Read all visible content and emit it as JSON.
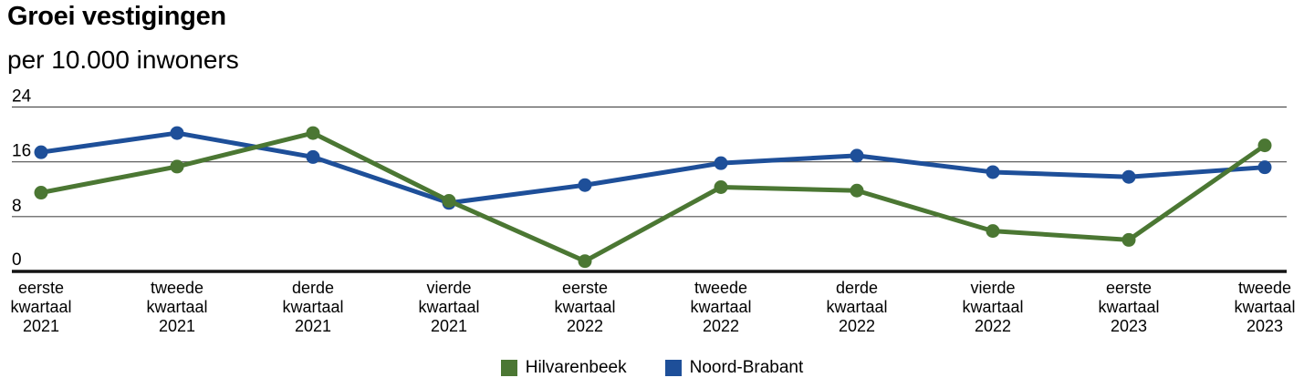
{
  "header": {
    "title": "Groei vestigingen",
    "subtitle": "per 10.000 inwoners"
  },
  "chart_data": {
    "type": "line",
    "title": "Groei vestigingen",
    "subtitle": "per 10.000 inwoners",
    "categories": [
      "eerste kwartaal 2021",
      "tweede kwartaal 2021",
      "derde kwartaal 2021",
      "vierde kwartaal 2021",
      "eerste kwartaal 2022",
      "tweede kwartaal 2022",
      "derde kwartaal 2022",
      "vierde kwartaal 2022",
      "eerste kwartaal 2023",
      "tweede kwartaal 2023"
    ],
    "series": [
      {
        "name": "Hilvarenbeek",
        "color": "#4b7733",
        "values": [
          11.5,
          15.3,
          20.2,
          10.3,
          1.5,
          12.3,
          11.8,
          5.9,
          4.6,
          18.4
        ]
      },
      {
        "name": "Noord-Brabant",
        "color": "#1e4f99",
        "values": [
          17.4,
          20.2,
          16.7,
          10.0,
          12.6,
          15.8,
          16.9,
          14.5,
          13.8,
          15.2
        ]
      }
    ],
    "y_axis": {
      "min": 0,
      "max": 24,
      "ticks": [
        0,
        8,
        16,
        24
      ]
    },
    "x_axis_label": "",
    "y_axis_label": "",
    "grid": true,
    "legend_position": "bottom",
    "marker": "circle"
  },
  "colors": {
    "background": "#ffffff",
    "grid_line": "#4f4f4f",
    "axis_line": "#141414",
    "text": "#000000"
  }
}
